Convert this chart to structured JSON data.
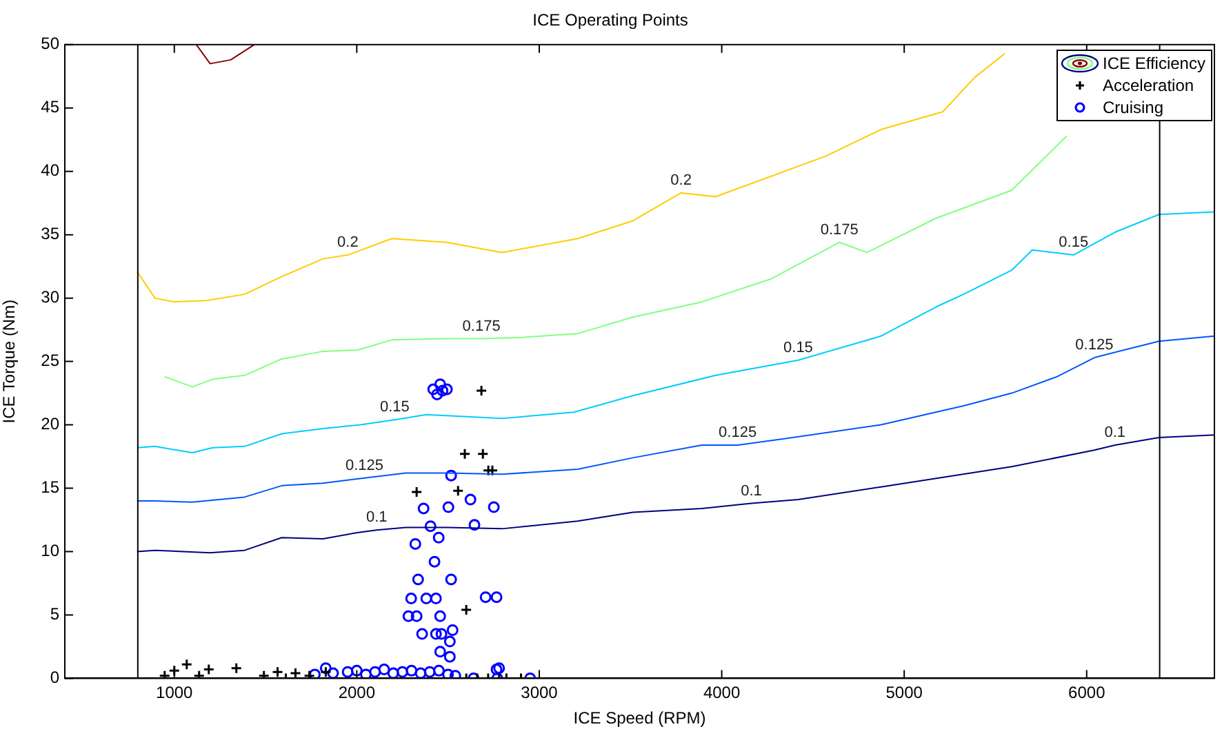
{
  "chart_data": {
    "type": "line",
    "title": "ICE Operating Points",
    "xlabel": "ICE Speed (RPM)",
    "ylabel": "ICE Torque (Nm)",
    "xlim": [
      400,
      6700
    ],
    "xticks": [
      1000,
      2000,
      3000,
      4000,
      5000,
      6000
    ],
    "ylim": [
      0,
      50
    ],
    "yticks": [
      0,
      5,
      10,
      15,
      20,
      25,
      30,
      35,
      40,
      45,
      50
    ],
    "grid": false,
    "legend": "top right",
    "line_style": "solid",
    "series": [
      {
        "name": "ICE Efficiency",
        "color": "#000080",
        "x": [
          796,
          894,
          1196,
          1385,
          1589,
          1815,
          2004,
          2109,
          2268,
          2494,
          2796,
          3211,
          3513,
          3891,
          4162,
          4419,
          4872,
          5589,
          6042,
          6155,
          6396,
          6700
        ],
        "values": [
          10.0,
          10.1,
          9.9,
          10.1,
          11.1,
          11.0,
          11.5,
          11.7,
          11.9,
          11.9,
          11.8,
          12.4,
          13.1,
          13.4,
          13.8,
          14.1,
          15.1,
          16.7,
          18.0,
          18.4,
          19.0,
          19.2
        ]
      },
      {
        "color": "#0055ff",
        "x": [
          796,
          894,
          1098,
          1385,
          1589,
          1815,
          2042,
          2268,
          2494,
          2796,
          3211,
          3513,
          3891,
          4087,
          4343,
          4872,
          5325,
          5589,
          5838,
          6042,
          6230,
          6396,
          6700
        ],
        "values": [
          14.0,
          14.0,
          13.9,
          14.3,
          15.2,
          15.4,
          15.8,
          16.2,
          16.2,
          16.1,
          16.5,
          17.4,
          18.4,
          18.4,
          18.9,
          20.0,
          21.5,
          22.5,
          23.8,
          25.3,
          26.0,
          26.6,
          27.0
        ]
      },
      {
        "color": "#00ccff",
        "x": [
          796,
          894,
          1098,
          1211,
          1385,
          1589,
          1815,
          2019,
          2208,
          2381,
          2796,
          3189,
          3513,
          3966,
          4419,
          4872,
          5174,
          5325,
          5589,
          5702,
          5928,
          6155,
          6396,
          6700
        ],
        "values": [
          18.2,
          18.3,
          17.8,
          18.2,
          18.3,
          19.3,
          19.7,
          20.0,
          20.4,
          20.8,
          20.5,
          21.0,
          22.3,
          23.9,
          25.1,
          27.0,
          29.3,
          30.3,
          32.2,
          33.8,
          33.4,
          35.2,
          36.6,
          36.8
        ]
      },
      {
        "color": "#80ff80",
        "x": [
          947,
          1098,
          1211,
          1385,
          1589,
          1815,
          2004,
          2192,
          2494,
          2683,
          2909,
          3211,
          3513,
          3891,
          4268,
          4645,
          4796,
          5174,
          5589,
          5891
        ],
        "values": [
          23.8,
          23.0,
          23.6,
          23.9,
          25.2,
          25.8,
          25.9,
          26.7,
          26.8,
          26.8,
          26.9,
          27.2,
          28.5,
          29.7,
          31.5,
          34.4,
          33.6,
          36.3,
          38.5,
          42.8
        ]
      },
      {
        "color": "#ffcc00",
        "x": [
          796,
          894,
          1000,
          1174,
          1385,
          1589,
          1815,
          1951,
          2192,
          2494,
          2796,
          3211,
          3513,
          3777,
          3966,
          4570,
          4872,
          5211,
          5385,
          5551
        ],
        "values": [
          32.1,
          30.0,
          29.7,
          29.8,
          30.3,
          31.7,
          33.1,
          33.4,
          34.7,
          34.4,
          33.6,
          34.7,
          36.1,
          38.3,
          38.0,
          41.2,
          43.3,
          44.7,
          47.4,
          49.3
        ]
      },
      {
        "color": "#8b0000",
        "x": [
          1121,
          1196,
          1309,
          1438
        ],
        "values": [
          50,
          48.5,
          48.8,
          50
        ]
      },
      {
        "name": "Acceleration",
        "type": "scatter",
        "marker": "cross",
        "color": "#000000",
        "x": [
          947,
          1000,
          1068,
          1136,
          1189,
          1340,
          1491,
          1566,
          1611,
          1664,
          1740,
          1830,
          2683,
          2592,
          2691,
          2721,
          2743,
          2328,
          2555,
          2600,
          2600,
          2660,
          2720,
          2780,
          2820,
          2900
        ],
        "values": [
          0.2,
          0.6,
          1.1,
          0.2,
          0.7,
          0.8,
          0.2,
          0.5,
          0,
          0.4,
          0.2,
          0.5,
          22.7,
          17.7,
          17.7,
          16.4,
          16.4,
          14.7,
          14.8,
          5.4,
          0,
          0,
          0,
          0,
          0,
          0
        ]
      },
      {
        "name": "Cruising",
        "type": "scatter",
        "marker": "circle",
        "color": "#0000ff",
        "x": [
          2419,
          2457,
          2494,
          2440,
          2470,
          2517,
          2366,
          2502,
          2623,
          2751,
          2404,
          2645,
          2449,
          2321,
          2426,
          2336,
          2517,
          2298,
          2381,
          2434,
          2706,
          2766,
          2283,
          2328,
          2457,
          2358,
          2434,
          2464,
          2525,
          2510,
          2457,
          2510,
          2766,
          1770,
          1830,
          1870,
          1950,
          2000,
          2050,
          2100,
          2150,
          2200,
          2250,
          2300,
          2350,
          2400,
          2450,
          2500,
          2540,
          2640,
          2770,
          2780,
          2950
        ],
        "values": [
          22.8,
          23.2,
          22.8,
          22.4,
          22.7,
          16.0,
          13.4,
          13.5,
          14.1,
          13.5,
          12.0,
          12.1,
          11.1,
          10.6,
          9.2,
          7.8,
          7.8,
          6.3,
          6.3,
          6.3,
          6.4,
          6.4,
          4.9,
          4.9,
          4.9,
          3.5,
          3.5,
          3.5,
          3.8,
          2.9,
          2.1,
          1.7,
          0.7,
          0.3,
          0.8,
          0.4,
          0.5,
          0.6,
          0.3,
          0.5,
          0.7,
          0.4,
          0.5,
          0.6,
          0.4,
          0.5,
          0.6,
          0.3,
          0.2,
          0,
          0,
          0.8,
          0
        ]
      }
    ],
    "ref_lines": [
      {
        "axis": "x",
        "value": 800,
        "color": "#000000"
      },
      {
        "axis": "x",
        "value": 6400,
        "color": "#000000"
      }
    ],
    "annotations": [
      {
        "text": "0.1",
        "x": 2109,
        "y": 11.7
      },
      {
        "text": "0.1",
        "x": 4162,
        "y": 13.8
      },
      {
        "text": "0.1",
        "x": 6155,
        "y": 18.4
      },
      {
        "text": "0.125",
        "x": 2042,
        "y": 15.8
      },
      {
        "text": "0.125",
        "x": 4087,
        "y": 18.4
      },
      {
        "text": "0.125",
        "x": 6042,
        "y": 25.3
      },
      {
        "text": "0.15",
        "x": 2208,
        "y": 20.4
      },
      {
        "text": "0.15",
        "x": 4419,
        "y": 25.1
      },
      {
        "text": "0.15",
        "x": 5928,
        "y": 33.4
      },
      {
        "text": "0.175",
        "x": 2683,
        "y": 26.8
      },
      {
        "text": "0.175",
        "x": 4645,
        "y": 34.4
      },
      {
        "text": "0.2",
        "x": 1951,
        "y": 33.4
      },
      {
        "text": "0.2",
        "x": 3777,
        "y": 38.3
      }
    ]
  }
}
